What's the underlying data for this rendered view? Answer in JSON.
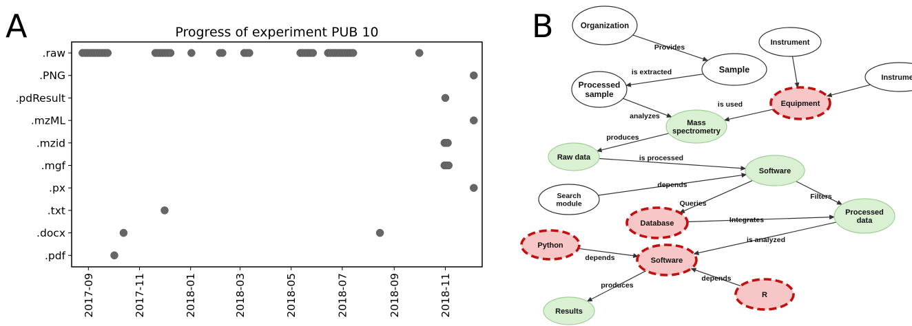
{
  "panels": {
    "left_letter": "A",
    "right_letter": "B"
  },
  "chart_data": {
    "type": "scatter",
    "title": "Progress of experiment PUB 10",
    "xlabel": "",
    "ylabel": "",
    "x_axis": "date",
    "xlim": [
      "2017-08-12",
      "2018-12-15"
    ],
    "xticks": [
      "2017-09-01",
      "2017-11-01",
      "2018-01-01",
      "2018-03-01",
      "2018-05-01",
      "2018-07-01",
      "2018-09-01",
      "2018-11-01"
    ],
    "xtick_labels": [
      "2017-09",
      "2017-11",
      "2018-01",
      "2018-03",
      "2018-05",
      "2018-07",
      "2018-09",
      "2018-11"
    ],
    "categories": [
      ".raw",
      ".PNG",
      ".pdResult",
      ".mzML",
      ".mzid",
      ".mgf",
      ".px",
      ".txt",
      ".docx",
      ".pdf"
    ],
    "marker_color": "#666666",
    "grid": false,
    "series": [
      {
        "category": ".raw",
        "x": [
          "2017-08-25",
          "2017-08-28",
          "2017-08-31",
          "2017-09-03",
          "2017-09-06",
          "2017-09-09",
          "2017-09-12",
          "2017-09-15",
          "2017-09-18",
          "2017-09-21",
          "2017-09-24",
          "2017-11-20",
          "2017-11-23",
          "2017-11-26",
          "2017-11-29",
          "2017-12-02",
          "2017-12-05",
          "2017-12-08",
          "2018-01-02",
          "2018-02-05",
          "2018-02-08",
          "2018-03-06",
          "2018-03-09",
          "2018-03-12",
          "2018-05-12",
          "2018-05-15",
          "2018-05-18",
          "2018-05-21",
          "2018-05-24",
          "2018-05-27",
          "2018-06-14",
          "2018-06-17",
          "2018-06-20",
          "2018-06-23",
          "2018-06-26",
          "2018-06-29",
          "2018-07-02",
          "2018-07-05",
          "2018-07-08",
          "2018-07-11",
          "2018-07-14",
          "2018-10-01"
        ]
      },
      {
        "category": ".PNG",
        "x": [
          "2018-12-05"
        ]
      },
      {
        "category": ".pdResult",
        "x": [
          "2018-11-01"
        ]
      },
      {
        "category": ".mzML",
        "x": [
          "2018-12-05"
        ]
      },
      {
        "category": ".mzid",
        "x": [
          "2018-10-31",
          "2018-11-02",
          "2018-11-04"
        ]
      },
      {
        "category": ".mgf",
        "x": [
          "2018-10-31",
          "2018-11-02",
          "2018-11-05"
        ]
      },
      {
        "category": ".px",
        "x": [
          "2018-12-05"
        ]
      },
      {
        "category": ".txt",
        "x": [
          "2017-12-01"
        ]
      },
      {
        "category": ".docx",
        "x": [
          "2017-10-13",
          "2018-08-15"
        ]
      },
      {
        "category": ".pdf",
        "x": [
          "2017-10-02"
        ]
      }
    ]
  },
  "graph": {
    "colors": {
      "plain_fill": "#ffffff",
      "plain_stroke": "#333333",
      "green_fill": "#d9f0d3",
      "green_stroke": "#9fcf95",
      "red_fill": "#f7c6c6",
      "red_stroke": "#c40f0f",
      "edge": "#333333"
    },
    "nodes": [
      {
        "id": "organization",
        "lines": [
          "Organization"
        ],
        "style": "plain"
      },
      {
        "id": "sample",
        "lines": [
          "Sample"
        ],
        "style": "plain"
      },
      {
        "id": "instrument1",
        "lines": [
          "Instrument"
        ],
        "style": "plain"
      },
      {
        "id": "instrument2",
        "lines": [
          "Instrumen"
        ],
        "style": "plain"
      },
      {
        "id": "processed_sample",
        "lines": [
          "Processed",
          "sample"
        ],
        "style": "plain"
      },
      {
        "id": "equipment",
        "lines": [
          "Equipment"
        ],
        "style": "red"
      },
      {
        "id": "mass_spec",
        "lines": [
          "Mass",
          "spectrometry"
        ],
        "style": "green"
      },
      {
        "id": "raw_data",
        "lines": [
          "Raw data"
        ],
        "style": "green"
      },
      {
        "id": "software1",
        "lines": [
          "Software"
        ],
        "style": "green"
      },
      {
        "id": "search_module",
        "lines": [
          "Search",
          "module"
        ],
        "style": "plain"
      },
      {
        "id": "database",
        "lines": [
          "Database"
        ],
        "style": "red"
      },
      {
        "id": "processed_data",
        "lines": [
          "Processed",
          "data"
        ],
        "style": "green"
      },
      {
        "id": "python",
        "lines": [
          "Python"
        ],
        "style": "red"
      },
      {
        "id": "software2",
        "lines": [
          "Software"
        ],
        "style": "red"
      },
      {
        "id": "r",
        "lines": [
          "R"
        ],
        "style": "red"
      },
      {
        "id": "results",
        "lines": [
          "Results"
        ],
        "style": "green"
      }
    ],
    "edges": [
      {
        "from": "organization",
        "to": "sample",
        "label": "Provides"
      },
      {
        "from": "sample",
        "to": "processed_sample",
        "label": "is extracted"
      },
      {
        "from": "instrument1",
        "to": "equipment",
        "label": ""
      },
      {
        "from": "instrument2",
        "to": "equipment",
        "label": ""
      },
      {
        "from": "processed_sample",
        "to": "mass_spec",
        "label": "analyzes"
      },
      {
        "from": "equipment",
        "to": "mass_spec",
        "label": "is used"
      },
      {
        "from": "mass_spec",
        "to": "raw_data",
        "label": "produces"
      },
      {
        "from": "raw_data",
        "to": "software1",
        "label": "is processed"
      },
      {
        "from": "search_module",
        "to": "software1",
        "label": "depends"
      },
      {
        "from": "software1",
        "to": "processed_data",
        "label": "Filters"
      },
      {
        "from": "software1",
        "to": "database",
        "label": "Queries"
      },
      {
        "from": "database",
        "to": "processed_data",
        "label": "Integrates"
      },
      {
        "from": "processed_data",
        "to": "software2",
        "label": "is analyzed"
      },
      {
        "from": "python",
        "to": "software2",
        "label": "depends"
      },
      {
        "from": "r",
        "to": "software2",
        "label": "depends"
      },
      {
        "from": "software2",
        "to": "results",
        "label": "produces"
      }
    ]
  }
}
